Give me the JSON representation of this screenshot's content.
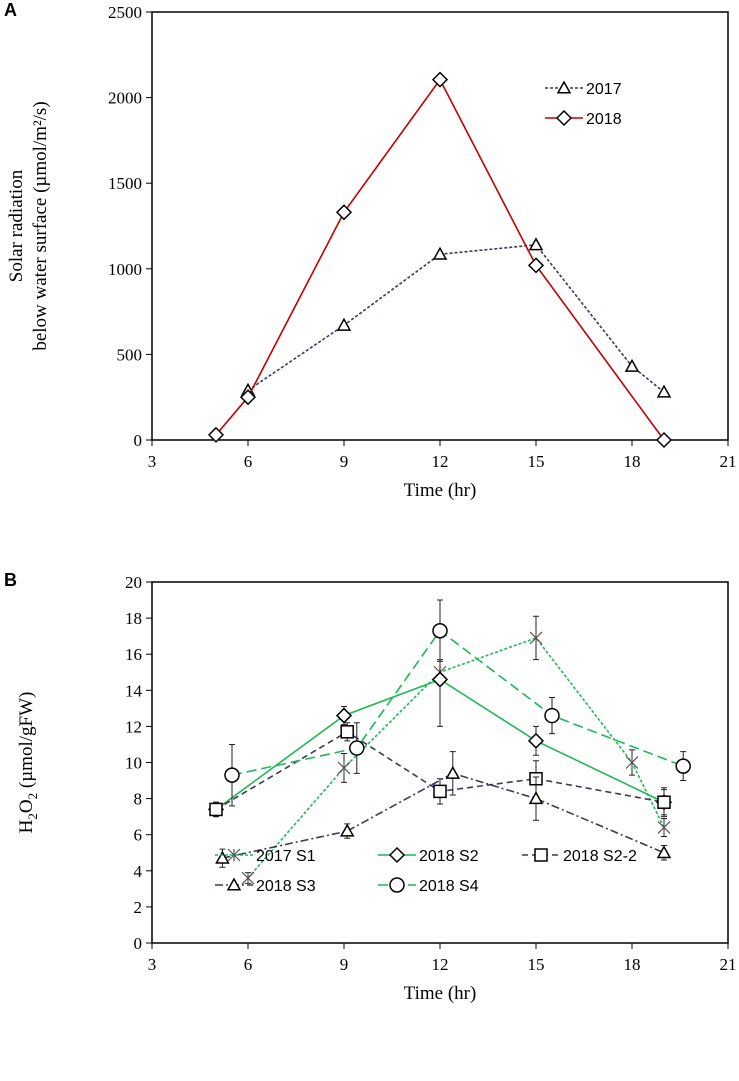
{
  "chart_data": [
    {
      "type": "line",
      "panel_label": "A",
      "xlabel": "Time (hr)",
      "ylabel_line1": "Solar radiation",
      "ylabel_line2": "below water surface (µmol/m²/s)",
      "xlim": [
        3,
        21
      ],
      "ylim": [
        0,
        2500
      ],
      "xticks": [
        3,
        6,
        9,
        12,
        15,
        18,
        21
      ],
      "yticks": [
        0,
        500,
        1000,
        1500,
        2000,
        2500
      ],
      "legend_position": "top-right",
      "series": [
        {
          "name": "2017",
          "marker": "triangle",
          "dash": "3,2",
          "color": "#3a3a5a",
          "x": [
            6,
            9,
            12,
            15,
            18,
            19
          ],
          "y": [
            290,
            670,
            1085,
            1140,
            430,
            280
          ]
        },
        {
          "name": "2018",
          "marker": "diamond",
          "dash": "",
          "color": "#c00000",
          "x": [
            5,
            6,
            9,
            12,
            15,
            19
          ],
          "y": [
            30,
            250,
            1330,
            2105,
            1020,
            0
          ]
        }
      ]
    },
    {
      "type": "line",
      "panel_label": "B",
      "xlabel": "Time (hr)",
      "ylabel": "H2O2 (µmol/gFW)",
      "xlim": [
        3,
        21
      ],
      "ylim": [
        0,
        20
      ],
      "xticks": [
        3,
        6,
        9,
        12,
        15,
        18,
        21
      ],
      "yticks": [
        0,
        2,
        4,
        6,
        8,
        10,
        12,
        14,
        16,
        18,
        20
      ],
      "legend_position": "bottom",
      "series": [
        {
          "name": "2017 S1",
          "marker": "asterisk",
          "dash": "3,2",
          "color": "#1db954",
          "x": [
            6,
            9,
            12,
            15,
            18,
            19
          ],
          "y": [
            3.6,
            9.7,
            15.0,
            16.9,
            10.0,
            6.4
          ],
          "err": [
            0.3,
            0.8,
            0.7,
            1.2,
            0.7,
            0.5
          ]
        },
        {
          "name": "2018 S2",
          "marker": "diamond",
          "dash": "",
          "color": "#1db954",
          "x": [
            5,
            9,
            12,
            15,
            19
          ],
          "y": [
            7.4,
            12.6,
            14.6,
            11.2,
            7.8
          ],
          "err": [
            0.4,
            0.5,
            2.6,
            0.8,
            0.7
          ]
        },
        {
          "name": "2018 S2-2",
          "marker": "square",
          "dash": "6,4",
          "color": "#3a3a5a",
          "x": [
            5,
            9.1,
            12,
            15,
            19
          ],
          "y": [
            7.4,
            11.7,
            8.4,
            9.1,
            7.8
          ],
          "err": [
            0.4,
            0.5,
            0.7,
            1.0,
            0.8
          ]
        },
        {
          "name": "2018 S3",
          "marker": "triangle",
          "dash": "8,3,2,3",
          "color": "#3a3a5a",
          "x": [
            5.2,
            9.1,
            12.4,
            15,
            19
          ],
          "y": [
            4.7,
            6.2,
            9.4,
            8.0,
            5.0
          ],
          "err": [
            0.5,
            0.4,
            1.2,
            1.2,
            0.4
          ]
        },
        {
          "name": "2018 S4",
          "marker": "circle",
          "dash": "10,5",
          "color": "#1db954",
          "x": [
            5.5,
            9.4,
            12,
            15.5,
            19.6
          ],
          "y": [
            9.3,
            10.8,
            17.3,
            12.6,
            9.8
          ],
          "err": [
            1.7,
            1.4,
            1.7,
            1.0,
            0.8
          ]
        }
      ]
    }
  ]
}
